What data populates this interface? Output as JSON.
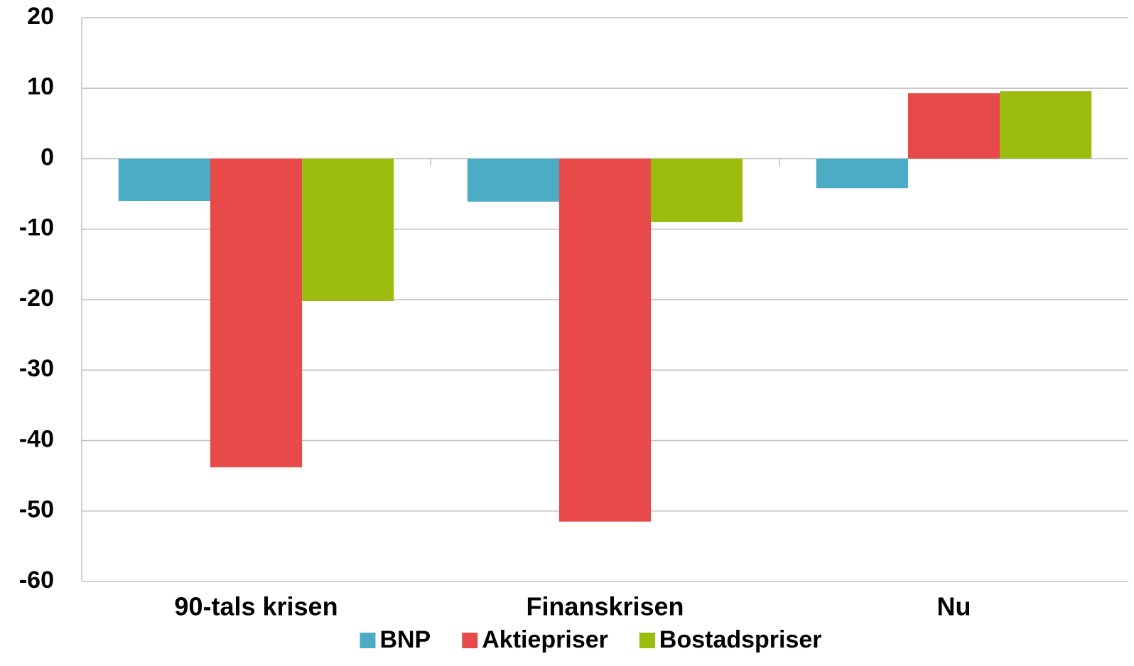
{
  "chart_data": {
    "type": "bar",
    "categories": [
      "90-tals krisen",
      "Finanskrisen",
      "Nu"
    ],
    "series": [
      {
        "name": "BNP",
        "color": "#4bacc6",
        "values": [
          -6.0,
          -6.1,
          -4.2
        ]
      },
      {
        "name": "Aktiepriser",
        "color": "#e84a4a",
        "values": [
          -43.8,
          -51.5,
          9.3
        ]
      },
      {
        "name": "Bostadspriser",
        "color": "#9bbb0f",
        "values": [
          -20.2,
          -9.0,
          9.6
        ]
      }
    ],
    "ylim": [
      -60,
      20
    ],
    "yticks": [
      -60,
      -50,
      -40,
      -30,
      -20,
      -10,
      0,
      10,
      20
    ],
    "grid": true,
    "legend": "bottom"
  }
}
